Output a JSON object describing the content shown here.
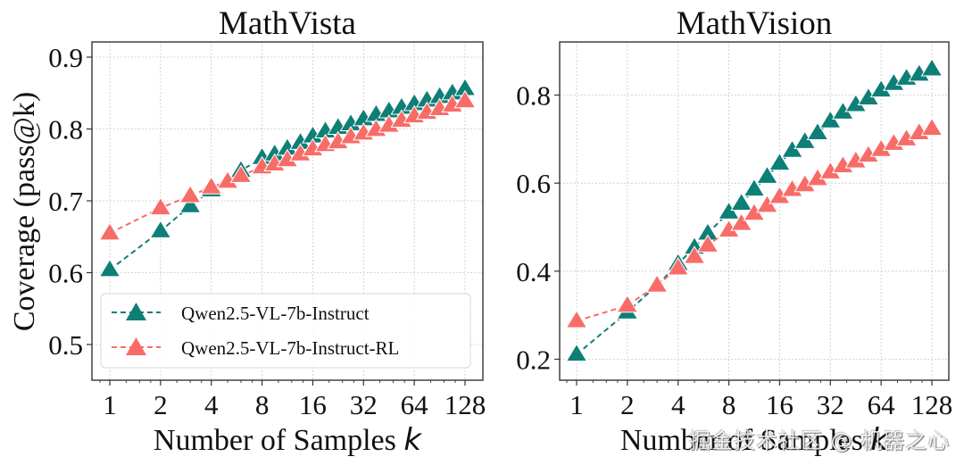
{
  "chart_data": [
    {
      "type": "line",
      "title": "MathVista",
      "xlabel": "Number of Samples",
      "xlabel_var": "k",
      "ylabel": "Coverage (pass@k)",
      "xscale": "log2",
      "xlim": [
        0.8,
        170
      ],
      "ylim": [
        0.455,
        0.925
      ],
      "xticks": [
        1,
        2,
        4,
        8,
        16,
        32,
        64,
        128
      ],
      "xtick_labels": [
        "1",
        "2",
        "4",
        "8",
        "16",
        "32",
        "64",
        "128"
      ],
      "yticks": [
        0.5,
        0.6,
        0.7,
        0.8,
        0.9
      ],
      "ytick_labels": [
        "0.5",
        "0.6",
        "0.7",
        "0.8",
        "0.9"
      ],
      "grid": true,
      "legend_position": "lower-left",
      "x": [
        1,
        2,
        3,
        4,
        5,
        6,
        8,
        9.5,
        11.3,
        13.5,
        16,
        19,
        22.6,
        26.9,
        32,
        38,
        45.3,
        53.8,
        64,
        76.1,
        90.5,
        107.6,
        128
      ],
      "series": [
        {
          "name": "Qwen2.5-VL-7b-Instruct",
          "color": "#0e7f77",
          "marker": "triangle-up",
          "linestyle": "dashed",
          "values": [
            0.604,
            0.658,
            0.693,
            0.715,
            0.727,
            0.742,
            0.76,
            0.765,
            0.773,
            0.781,
            0.79,
            0.797,
            0.802,
            0.807,
            0.814,
            0.82,
            0.825,
            0.83,
            0.835,
            0.84,
            0.845,
            0.85,
            0.856
          ]
        },
        {
          "name": "Qwen2.5-VL-7b-Instruct-RL",
          "color": "#f86c68",
          "marker": "triangle-up",
          "linestyle": "dashed",
          "values": [
            0.655,
            0.69,
            0.707,
            0.719,
            0.727,
            0.735,
            0.747,
            0.751,
            0.757,
            0.765,
            0.772,
            0.778,
            0.782,
            0.789,
            0.794,
            0.799,
            0.805,
            0.812,
            0.818,
            0.823,
            0.828,
            0.833,
            0.839
          ]
        }
      ]
    },
    {
      "type": "line",
      "title": "MathVision",
      "xlabel": "Number of Samples",
      "xlabel_var": "k",
      "ylabel": "",
      "xscale": "log2",
      "xlim": [
        0.7,
        170
      ],
      "ylim": [
        0.15,
        0.925
      ],
      "xticks": [
        1,
        2,
        4,
        8,
        16,
        32,
        64,
        128
      ],
      "xtick_labels": [
        "1",
        "2",
        "4",
        "8",
        "16",
        "32",
        "64",
        "128"
      ],
      "yticks": [
        0.2,
        0.4,
        0.6,
        0.8
      ],
      "ytick_labels": [
        "0.2",
        "0.4",
        "0.6",
        "0.8"
      ],
      "grid": true,
      "legend_position": "none",
      "x": [
        1,
        2,
        3,
        4,
        5,
        6,
        8,
        9.5,
        11.3,
        13.5,
        16,
        19,
        22.6,
        26.9,
        32,
        38,
        45.3,
        53.8,
        64,
        76.1,
        90.5,
        107.6,
        128
      ],
      "series": [
        {
          "name": "Qwen2.5-VL-7b-Instruct",
          "color": "#0e7f77",
          "marker": "triangle-up",
          "linestyle": "dashed",
          "values": [
            0.211,
            0.307,
            0.368,
            0.417,
            0.454,
            0.486,
            0.534,
            0.554,
            0.586,
            0.615,
            0.645,
            0.674,
            0.694,
            0.714,
            0.741,
            0.761,
            0.778,
            0.793,
            0.811,
            0.826,
            0.838,
            0.847,
            0.859
          ]
        },
        {
          "name": "Qwen2.5-VL-7b-Instruct-RL",
          "color": "#f86c68",
          "marker": "triangle-up",
          "linestyle": "dashed",
          "values": [
            0.287,
            0.322,
            0.368,
            0.407,
            0.433,
            0.459,
            0.493,
            0.508,
            0.531,
            0.549,
            0.569,
            0.585,
            0.596,
            0.61,
            0.625,
            0.639,
            0.65,
            0.663,
            0.676,
            0.69,
            0.7,
            0.714,
            0.724
          ]
        }
      ]
    }
  ],
  "legend": {
    "items": [
      {
        "label": "Qwen2.5-VL-7b-Instruct",
        "color": "#0e7f77"
      },
      {
        "label": "Qwen2.5-VL-7b-Instruct-RL",
        "color": "#f86c68"
      }
    ]
  },
  "watermark": "掘金技术社区 @ 机器之心"
}
